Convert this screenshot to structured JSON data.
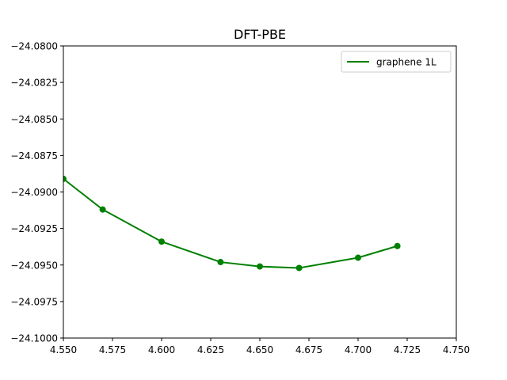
{
  "chart_data": {
    "type": "line",
    "title": "DFT-PBE",
    "xlabel": "",
    "ylabel": "",
    "xlim": [
      4.55,
      4.75
    ],
    "ylim": [
      -24.1,
      -24.08
    ],
    "x_ticks": [
      4.55,
      4.575,
      4.6,
      4.625,
      4.65,
      4.675,
      4.7,
      4.725,
      4.75
    ],
    "x_tick_labels": [
      "4.550",
      "4.575",
      "4.600",
      "4.625",
      "4.650",
      "4.675",
      "4.700",
      "4.725",
      "4.750"
    ],
    "y_ticks": [
      -24.1,
      -24.0975,
      -24.095,
      -24.0925,
      -24.09,
      -24.0875,
      -24.085,
      -24.0825,
      -24.08
    ],
    "y_tick_labels": [
      "−24.1000",
      "−24.0975",
      "−24.0950",
      "−24.0925",
      "−24.0900",
      "−24.0875",
      "−24.0850",
      "−24.0825",
      "−24.0800"
    ],
    "grid": false,
    "legend_position": "top-right",
    "series": [
      {
        "name": "graphene 1L",
        "color": "#008000",
        "marker": "circle",
        "x": [
          4.55,
          4.57,
          4.6,
          4.63,
          4.65,
          4.67,
          4.7,
          4.72
        ],
        "y": [
          -24.0891,
          -24.0912,
          -24.0934,
          -24.0948,
          -24.0951,
          -24.0952,
          -24.0945,
          -24.0937
        ]
      }
    ]
  }
}
